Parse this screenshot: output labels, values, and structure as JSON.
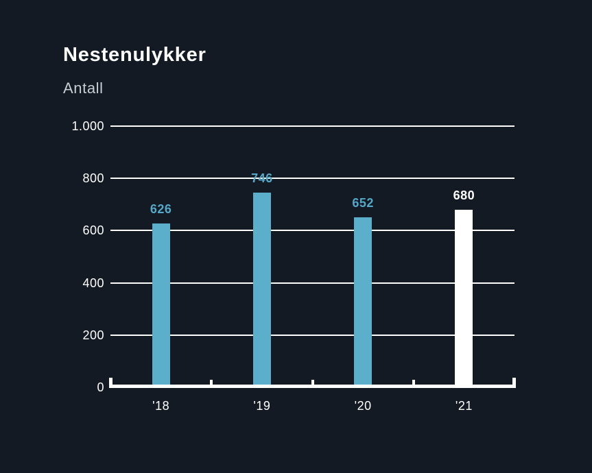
{
  "page": {
    "background_color": "#131a24"
  },
  "header": {
    "title": "Nestenulykker",
    "subtitle": "Antall"
  },
  "chart_data": {
    "type": "bar",
    "title": "Nestenulykker",
    "subtitle": "Antall",
    "categories": [
      "'18",
      "'19",
      "'20",
      "'21"
    ],
    "values": [
      626,
      746,
      652,
      680
    ],
    "bar_colors": [
      "#5bafcb",
      "#5bafcb",
      "#5bafcb",
      "#ffffff"
    ],
    "value_label_colors": [
      "#54a9c9",
      "#54a9c9",
      "#54a9c9",
      "#ffffff"
    ],
    "xlabel": "",
    "ylabel": "",
    "ylim": [
      0,
      1000
    ],
    "yticks": [
      {
        "value": 1000,
        "label": "1.000"
      },
      {
        "value": 800,
        "label": "800"
      },
      {
        "value": 600,
        "label": "600"
      },
      {
        "value": 400,
        "label": "400"
      },
      {
        "value": 200,
        "label": "200"
      },
      {
        "value": 0,
        "label": "0"
      }
    ],
    "grid": "horizontal-white",
    "legend": "none",
    "axis_color": "#ffffff",
    "text_color": "#ffffff"
  }
}
